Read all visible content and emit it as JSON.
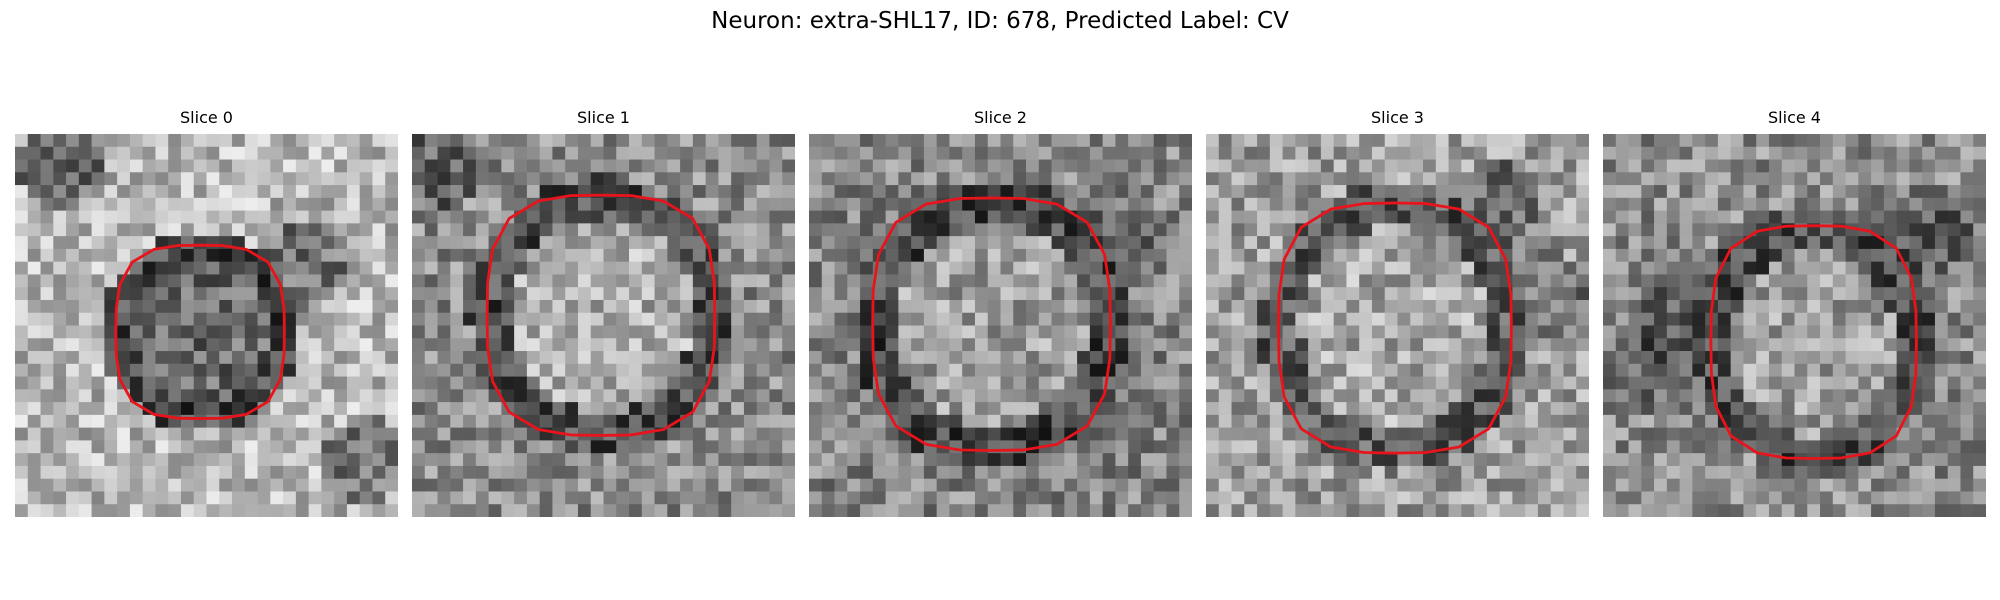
{
  "figure": {
    "title": "Neuron: extra-SHL17, ID: 678, Predicted Label: CV"
  },
  "colors": {
    "contour": "#e8141c",
    "background": "#ffffff"
  },
  "panels": [
    {
      "title": "Slice 0",
      "image": "grayscale-em-patch",
      "contour": "red-roi-outline"
    },
    {
      "title": "Slice 1",
      "image": "grayscale-em-patch",
      "contour": "red-roi-outline"
    },
    {
      "title": "Slice 2",
      "image": "grayscale-em-patch",
      "contour": "red-roi-outline"
    },
    {
      "title": "Slice 3",
      "image": "grayscale-em-patch",
      "contour": "red-roi-outline"
    },
    {
      "title": "Slice 4",
      "image": "grayscale-em-patch",
      "contour": "red-roi-outline"
    }
  ]
}
